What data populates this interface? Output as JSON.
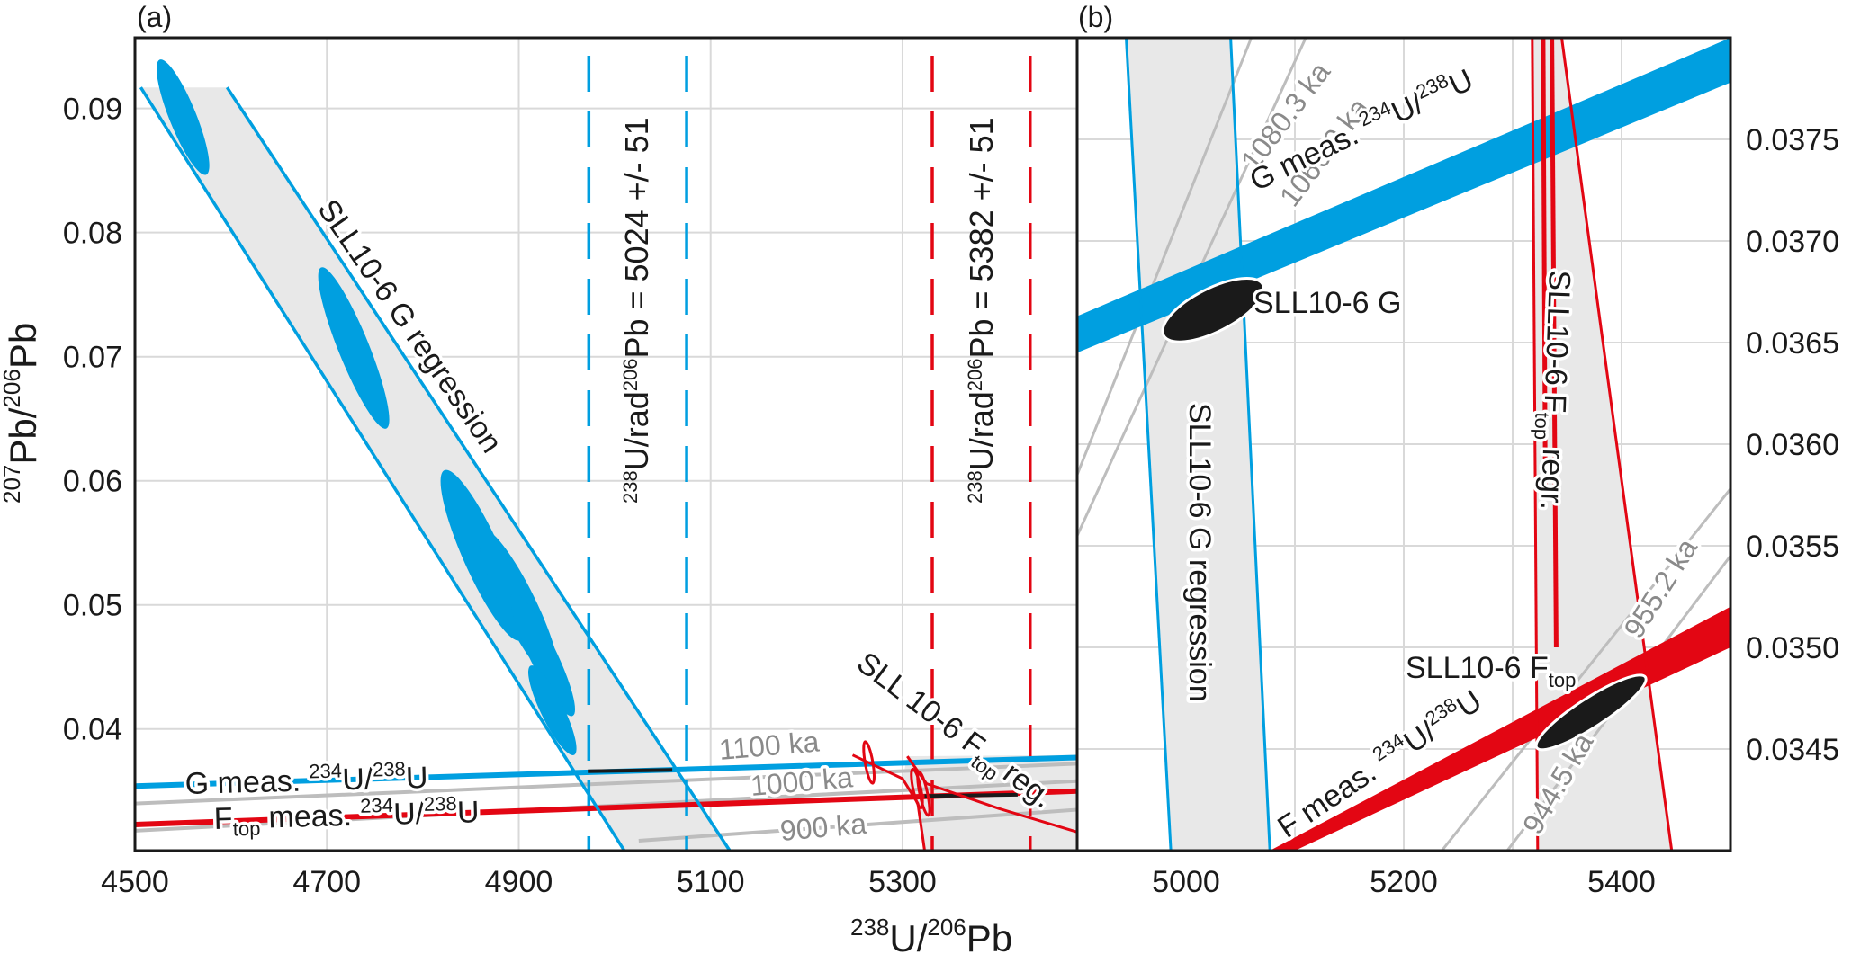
{
  "colors": {
    "g_blue": "#009fe0",
    "f_red": "#e30613",
    "isochron_gray": "#bdbdbd",
    "band_gray": "#e8e8e8",
    "grid": "#d9d9d9",
    "frame": "#1a1a1a",
    "ellipse_black": "#1a1a1a"
  },
  "chart_data": [
    {
      "panel": "(a)",
      "type": "scatter",
      "title": "",
      "xlabel": "238U/206Pb",
      "ylabel": "207Pb/206Pb",
      "xlim": [
        4500,
        5482
      ],
      "ylim": [
        0.0302,
        0.0957
      ],
      "grid": true,
      "xticks": [
        4500,
        4700,
        4900,
        5100,
        5300
      ],
      "xtick_labels": [
        "4500",
        "4700",
        "4900",
        "5100",
        "5300"
      ],
      "xgrid": [
        4700,
        4900,
        5100,
        5300
      ],
      "yticks": [
        0.04,
        0.05,
        0.06,
        0.07,
        0.08,
        0.09
      ],
      "ytick_labels": [
        "0.04",
        "0.05",
        "0.06",
        "0.07",
        "0.08",
        "0.09"
      ],
      "g_ellipses": [
        {
          "cx": 4550,
          "cy": 0.0893,
          "rx_units": 14,
          "ry": 0.005,
          "angle": -22
        },
        {
          "cx": 4728,
          "cy": 0.0707,
          "rx_units": 16,
          "ry": 0.007,
          "angle": -22
        },
        {
          "cx": 4862,
          "cy": 0.054,
          "rx_units": 20,
          "ry": 0.0075,
          "angle": -24
        },
        {
          "cx": 4900,
          "cy": 0.05,
          "rx_units": 18,
          "ry": 0.0068,
          "angle": -26
        },
        {
          "cx": 4925,
          "cy": 0.046,
          "rx_units": 14,
          "ry": 0.0055,
          "angle": -26
        },
        {
          "cx": 4935,
          "cy": 0.0415,
          "rx_units": 12,
          "ry": 0.004,
          "angle": -26
        }
      ],
      "g_regression_band": {
        "top_y": 0.0917,
        "left_line": [
          [
            4506,
            0.0917
          ],
          [
            5010,
            0.0302
          ]
        ],
        "right_line": [
          [
            4596,
            0.0917
          ],
          [
            5120,
            0.0302
          ]
        ],
        "label": "SLL10-6 G regression"
      },
      "f_ellipses": [
        {
          "cx": 5265,
          "cy": 0.0373,
          "rx_units": 4,
          "ry": 0.0017,
          "angle": -10
        },
        {
          "cx": 5315,
          "cy": 0.0352,
          "rx_units": 4,
          "ry": 0.0016,
          "angle": -12
        },
        {
          "cx": 5322,
          "cy": 0.0348,
          "rx_units": 4,
          "ry": 0.0018,
          "angle": -12
        }
      ],
      "f_regression": {
        "lines": [
          [
            [
              5248,
              0.0379
            ],
            [
              5300,
              0.036
            ],
            [
              5316,
              0.034
            ],
            [
              5323,
              0.0302
            ]
          ],
          [
            [
              5305,
              0.0378
            ],
            [
              5325,
              0.0356
            ],
            [
              5400,
              0.0336
            ],
            [
              5482,
              0.0317
            ]
          ]
        ],
        "band": [
          [
            5305,
            0.0378
          ],
          [
            5482,
            0.0379
          ],
          [
            5482,
            0.0302
          ],
          [
            5323,
            0.0302
          ],
          [
            5316,
            0.034
          ],
          [
            5300,
            0.036
          ]
        ],
        "label_main": "SLL 10-6 F",
        "label_sub": "top",
        "label_end": "reg."
      },
      "g_meas_line": {
        "points": [
          [
            4500,
            0.0354
          ],
          [
            5482,
            0.0377
          ]
        ],
        "black_segment": [
          [
            4972,
            0.0366
          ],
          [
            5060,
            0.0367
          ]
        ],
        "label_main": "G meas. ",
        "label_sup1": "234",
        "label_u1": "U/",
        "label_sup2": "238",
        "label_u2": "U"
      },
      "f_meas_line": {
        "points": [
          [
            4500,
            0.0323
          ],
          [
            5482,
            0.035
          ]
        ],
        "black_segment": [
          [
            5323,
            0.0346
          ],
          [
            5420,
            0.0347
          ]
        ],
        "label_main": "F",
        "label_sub": "top",
        "label_rest": " meas. ",
        "label_sup1": "234",
        "label_u1": "U/",
        "label_sup2": "238",
        "label_u2": "U"
      },
      "isochrons": [
        {
          "label": "1100 ka",
          "points": [
            [
              4500,
              0.034
            ],
            [
              5482,
              0.0372
            ]
          ]
        },
        {
          "label": "1000 ka",
          "points": [
            [
              4500,
              0.0318
            ],
            [
              5482,
              0.0358
            ]
          ]
        },
        {
          "label": "900 ka",
          "points": [
            [
              5025,
              0.031
            ],
            [
              5482,
              0.0335
            ]
          ]
        }
      ],
      "vlines": [
        {
          "x": 4973,
          "color": "g_blue",
          "style": "dashed"
        },
        {
          "x": 5075,
          "color": "g_blue",
          "style": "dashed"
        },
        {
          "x": 5331,
          "color": "f_red",
          "style": "dashed"
        },
        {
          "x": 5433,
          "color": "f_red",
          "style": "dashed"
        }
      ],
      "vline_labels": [
        {
          "sup": "238",
          "text": "U/rad",
          "sup2": "206",
          "text2": "Pb = 5024 +/- 51"
        },
        {
          "sup": "238",
          "text": "U/rad",
          "sup2": "206",
          "text2": "Pb = 5382 +/- 51"
        }
      ]
    },
    {
      "panel": "(b)",
      "type": "scatter",
      "xlabel": "238U/206Pb",
      "ylabel": "",
      "xlim": [
        4900,
        5500
      ],
      "ylim": [
        0.034,
        0.038
      ],
      "grid": true,
      "xticks": [
        5000,
        5200,
        5400
      ],
      "xtick_labels": [
        "5000",
        "5200",
        "5400"
      ],
      "xgrid": [
        5000,
        5100,
        5200,
        5300,
        5400
      ],
      "yticks": [
        0.0345,
        0.035,
        0.0355,
        0.036,
        0.0365,
        0.037,
        0.0375
      ],
      "ytick_labels": [
        "0.0345",
        "0.0350",
        "0.0355",
        "0.0360",
        "0.0365",
        "0.0370",
        "0.0375"
      ],
      "y_axis_side": "right",
      "g_point": {
        "cx": 5025,
        "cy": 0.03666,
        "label": "SLL10-6 G"
      },
      "f_point": {
        "cx": 5372,
        "cy": 0.03468,
        "label_main": "SLL10-6 F",
        "label_sub": "top"
      },
      "g_regression_band": {
        "left_line": [
          [
            4945,
            0.038
          ],
          [
            4986,
            0.034
          ]
        ],
        "right_line": [
          [
            5041,
            0.038
          ],
          [
            5077,
            0.034
          ]
        ],
        "label": "SLL10-6 G regression"
      },
      "f_regression_band": {
        "lines": [
          [
            [
              5318,
              0.038
            ],
            [
              5323,
              0.034
            ]
          ],
          [
            [
              5328,
              0.038
            ],
            [
              5330,
              0.0358
            ]
          ],
          [
            [
              5336,
              0.038
            ],
            [
              5340,
              0.035
            ]
          ],
          [
            [
              5345,
              0.038
            ],
            [
              5446,
              0.034
            ]
          ]
        ],
        "band": [
          [
            5318,
            0.038
          ],
          [
            5345,
            0.038
          ],
          [
            5446,
            0.034
          ],
          [
            5323,
            0.034
          ]
        ],
        "label_main": "SLL10-6 F",
        "label_sub": "top",
        "label_end": " regr."
      },
      "g_meas_band": {
        "lower": [
          [
            4900,
            0.03645
          ],
          [
            5500,
            0.03778
          ]
        ],
        "upper": [
          [
            4900,
            0.03663
          ],
          [
            5500,
            0.038
          ]
        ],
        "label_main": "G meas. ",
        "label_sup1": "234",
        "label_u1": "U/",
        "label_sup2": "238",
        "label_u2": "U"
      },
      "f_meas_band": {
        "lower": [
          [
            5100,
            0.034
          ],
          [
            5500,
            0.035
          ]
        ],
        "upper": [
          [
            5077,
            0.034
          ],
          [
            5500,
            0.0352
          ]
        ],
        "label_main": "F meas. ",
        "label_sup1": "234",
        "label_u1": "U/",
        "label_sup2": "238",
        "label_u2": "U"
      },
      "isochrons": [
        {
          "label": "1080.3 ka",
          "points": [
            [
              4900,
              0.03585
            ],
            [
              5060,
              0.038
            ]
          ]
        },
        {
          "label": "1066.9 ka",
          "points": [
            [
              4900,
              0.03555
            ],
            [
              5110,
              0.038
            ]
          ]
        },
        {
          "label": "955.2 ka",
          "points": [
            [
              5235,
              0.034
            ],
            [
              5500,
              0.03578
            ]
          ]
        },
        {
          "label": "944.5 ka",
          "points": [
            [
              5295,
              0.034
            ],
            [
              5500,
              0.03545
            ]
          ]
        }
      ]
    }
  ],
  "labels": {
    "panel_a": "(a)",
    "panel_b": "(b)",
    "x_axis_sup1": "238",
    "x_axis_main1": "U/",
    "x_axis_sup2": "206",
    "x_axis_main2": "Pb",
    "y_axis_sup1": "207",
    "y_axis_main1": "Pb/",
    "y_axis_sup2": "206",
    "y_axis_main2": "Pb"
  }
}
